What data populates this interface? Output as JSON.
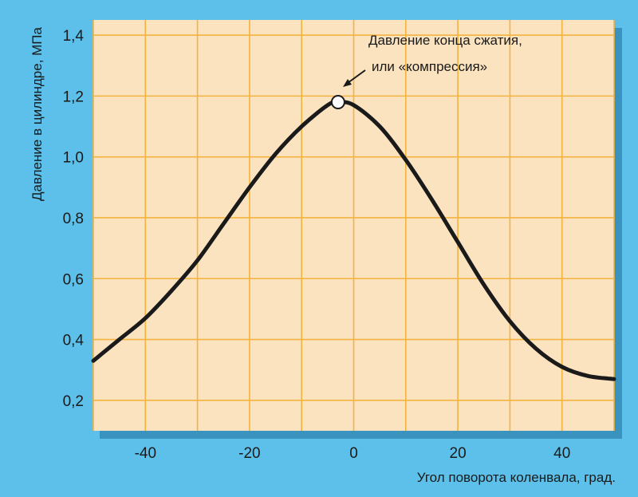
{
  "chart_data": {
    "type": "line",
    "title": "",
    "xlabel": "Угол поворота коленвала, град.",
    "ylabel": "Давление в цилиндре, МПа",
    "xlim": [
      -50,
      50
    ],
    "ylim": [
      0.1,
      1.45
    ],
    "x_ticks": [
      -40,
      -20,
      0,
      20,
      40
    ],
    "x_tick_labels": [
      "-40",
      "-20",
      "0",
      "20",
      "40"
    ],
    "y_ticks": [
      0.2,
      0.4,
      0.6,
      0.8,
      1.0,
      1.2,
      1.4
    ],
    "y_tick_labels": [
      "0,2",
      "0,4",
      "0,6",
      "0,8",
      "1,0",
      "1,2",
      "1,4"
    ],
    "x_grid": [
      -50,
      -40,
      -30,
      -20,
      -10,
      0,
      10,
      20,
      30,
      40,
      50
    ],
    "y_grid": [
      0.2,
      0.4,
      0.6,
      0.8,
      1.0,
      1.2,
      1.4
    ],
    "grid": true,
    "series": [
      {
        "x": [
          -50,
          -45,
          -40,
          -35,
          -30,
          -25,
          -20,
          -15,
          -10,
          -5,
          -3,
          0,
          5,
          10,
          15,
          20,
          25,
          30,
          35,
          40,
          45,
          50
        ],
        "y": [
          0.33,
          0.4,
          0.47,
          0.56,
          0.66,
          0.78,
          0.9,
          1.01,
          1.1,
          1.17,
          1.18,
          1.17,
          1.1,
          0.99,
          0.86,
          0.72,
          0.58,
          0.46,
          0.37,
          0.31,
          0.28,
          0.27
        ]
      }
    ],
    "marker": {
      "x": -3,
      "y": 1.18
    },
    "annotation": {
      "lines": [
        "Давление конца сжатия,",
        "или «компрессия»"
      ]
    },
    "colors": {
      "background": "#5cc0ea",
      "plot_background": "#fbe3c0",
      "grid": "#f2b33f",
      "curve": "#1a1a1a",
      "marker_fill": "#ffffff"
    }
  }
}
